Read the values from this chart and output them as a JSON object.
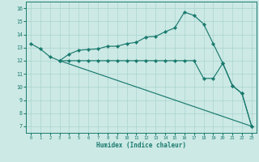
{
  "line1_x": [
    0,
    1,
    2,
    3,
    4,
    5,
    6,
    7,
    8,
    9,
    10,
    11,
    12,
    13,
    14,
    15,
    16,
    17,
    18,
    19,
    20,
    21,
    22,
    23
  ],
  "line1_y": [
    13.3,
    12.9,
    12.3,
    12.0,
    12.5,
    12.8,
    12.85,
    12.9,
    13.1,
    13.1,
    13.3,
    13.4,
    13.8,
    13.85,
    14.2,
    14.5,
    15.7,
    15.45,
    14.8,
    13.3,
    11.8,
    10.1,
    9.5,
    7.0
  ],
  "line2_x": [
    3,
    4,
    5,
    6,
    7,
    8,
    9,
    10,
    11,
    12,
    13,
    14,
    15,
    16,
    17,
    18,
    19,
    20,
    21,
    22,
    23
  ],
  "line2_y": [
    12.0,
    12.0,
    12.0,
    12.0,
    12.0,
    12.0,
    12.0,
    12.0,
    12.0,
    12.0,
    12.0,
    12.0,
    12.0,
    12.0,
    12.0,
    10.65,
    10.65,
    11.8,
    10.1,
    9.5,
    7.0
  ],
  "line3_x": [
    3,
    23
  ],
  "line3_y": [
    12.0,
    7.0
  ],
  "line_color": "#1a7a6e",
  "bg_color": "#cce9e5",
  "grid_color": "#aad4cf",
  "xlabel": "Humidex (Indice chaleur)",
  "xlim": [
    -0.5,
    23.5
  ],
  "ylim": [
    6.5,
    16.5
  ],
  "xticks": [
    0,
    1,
    2,
    3,
    4,
    5,
    6,
    7,
    8,
    9,
    10,
    11,
    12,
    13,
    14,
    15,
    16,
    17,
    18,
    19,
    20,
    21,
    22,
    23
  ],
  "yticks": [
    7,
    8,
    9,
    10,
    11,
    12,
    13,
    14,
    15,
    16
  ],
  "figw": 3.2,
  "figh": 2.0,
  "dpi": 100
}
